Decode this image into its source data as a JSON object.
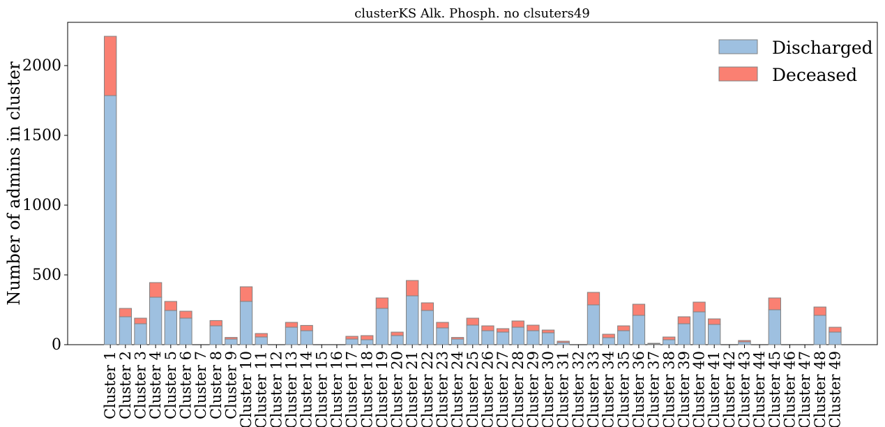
{
  "chart_data": {
    "type": "bar",
    "stacked": true,
    "title": "clusterKS Alk. Phosph. no clsuters49",
    "xlabel": "",
    "ylabel": "Number of admins in cluster",
    "ylim": [
      0,
      2310
    ],
    "yticks": [
      0,
      500,
      1000,
      1500,
      2000
    ],
    "grid": false,
    "legend_position": "top-right",
    "categories": [
      "Cluster 1",
      "Cluster 2",
      "Cluster 3",
      "Cluster 4",
      "Cluster 5",
      "Cluster 6",
      "Cluster 7",
      "Cluster 8",
      "Cluster 9",
      "Cluster 10",
      "Cluster 11",
      "Cluster 12",
      "Cluster 13",
      "Cluster 14",
      "Cluster 15",
      "Cluster 16",
      "Cluster 17",
      "Cluster 18",
      "Cluster 19",
      "Cluster 20",
      "Cluster 21",
      "Cluster 22",
      "Cluster 23",
      "Cluster 24",
      "Cluster 25",
      "Cluster 26",
      "Cluster 27",
      "Cluster 28",
      "Cluster 29",
      "Cluster 30",
      "Cluster 31",
      "Cluster 32",
      "Cluster 33",
      "Cluster 34",
      "Cluster 35",
      "Cluster 36",
      "Cluster 37",
      "Cluster 38",
      "Cluster 39",
      "Cluster 40",
      "Cluster 41",
      "Cluster 42",
      "Cluster 43",
      "Cluster 44",
      "Cluster 45",
      "Cluster 46",
      "Cluster 47",
      "Cluster 48",
      "Cluster 49"
    ],
    "series": [
      {
        "name": "Discharged",
        "color": "#9ec0e0",
        "values": [
          1785,
          200,
          150,
          340,
          245,
          190,
          0,
          135,
          40,
          310,
          55,
          0,
          125,
          100,
          0,
          0,
          40,
          35,
          260,
          65,
          350,
          245,
          120,
          40,
          140,
          100,
          90,
          125,
          100,
          85,
          15,
          0,
          285,
          50,
          100,
          210,
          5,
          35,
          150,
          235,
          145,
          0,
          20,
          0,
          250,
          0,
          0,
          210,
          90
        ]
      },
      {
        "name": "Deceased",
        "color": "#fa8072",
        "values": [
          425,
          60,
          40,
          105,
          65,
          50,
          0,
          38,
          12,
          105,
          25,
          0,
          35,
          38,
          0,
          0,
          20,
          30,
          75,
          25,
          110,
          55,
          40,
          12,
          50,
          35,
          25,
          45,
          40,
          20,
          10,
          0,
          90,
          25,
          35,
          80,
          5,
          20,
          50,
          70,
          40,
          0,
          10,
          0,
          85,
          0,
          0,
          60,
          35
        ]
      }
    ]
  }
}
